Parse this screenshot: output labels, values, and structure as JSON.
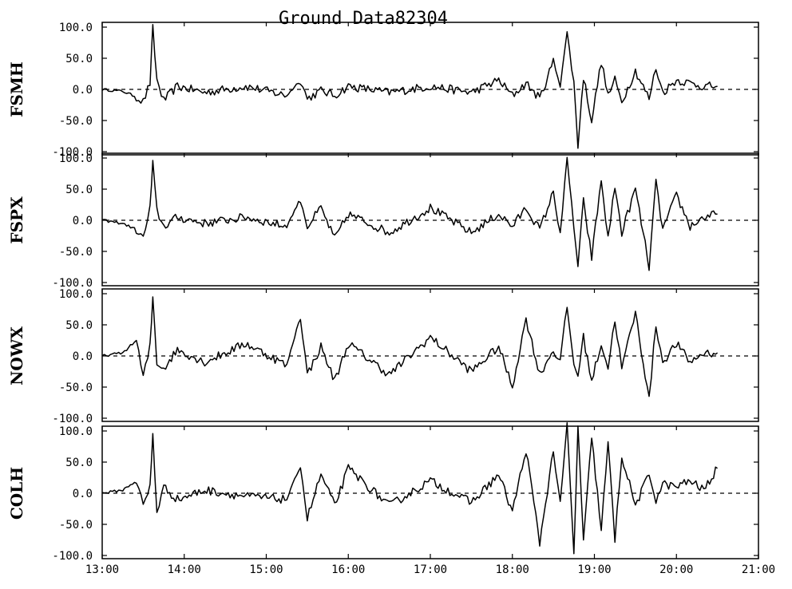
{
  "chart_data": {
    "type": "line",
    "title": "Ground Data82304",
    "x_tick_labels": [
      "13:00",
      "14:00",
      "15:00",
      "16:00",
      "17:00",
      "18:00",
      "19:00",
      "20:00",
      "21:00"
    ],
    "xlim": [
      "13:00",
      "21:00"
    ],
    "zero_line": "dashed",
    "colors": {
      "line": "#000000",
      "axes": "#000000",
      "background": "#ffffff"
    },
    "panels": [
      {
        "ylabel": "FSMH",
        "y_tick_labels": [
          "100.0",
          "50.0",
          "0.0",
          "-50.0",
          "-100.0"
        ],
        "ylim": [
          -100,
          100
        ],
        "series": [
          {
            "x": [
              "13:00",
              "13:15",
              "13:25",
              "13:30",
              "13:35",
              "13:37",
              "13:40",
              "13:45",
              "13:55",
              "14:15",
              "14:45",
              "15:15",
              "15:25",
              "15:30",
              "15:40",
              "15:50",
              "16:00",
              "16:30",
              "17:00",
              "17:30",
              "17:50",
              "18:00",
              "18:10",
              "18:20",
              "18:30",
              "18:35",
              "18:40",
              "18:45",
              "18:48",
              "18:52",
              "18:58",
              "19:05",
              "19:10",
              "19:15",
              "19:20",
              "19:30",
              "19:40",
              "19:45",
              "19:50",
              "20:00",
              "20:10",
              "20:20",
              "20:30"
            ],
            "values": [
              0,
              -3,
              -12,
              -20,
              10,
              98,
              15,
              -18,
              5,
              -5,
              5,
              -10,
              15,
              -15,
              -2,
              -10,
              5,
              -5,
              5,
              -5,
              15,
              -10,
              10,
              -15,
              45,
              10,
              90,
              10,
              -90,
              20,
              -50,
              45,
              -10,
              15,
              -20,
              30,
              -15,
              35,
              -5,
              15,
              10,
              5,
              5
            ]
          }
        ]
      },
      {
        "ylabel": "FSPX",
        "y_tick_labels": [
          "100.0",
          "50.0",
          "0.0",
          "-50.0",
          "-100.0"
        ],
        "ylim": [
          -100,
          100
        ],
        "series": [
          {
            "x": [
              "13:00",
              "13:15",
              "13:25",
              "13:30",
              "13:35",
              "13:37",
              "13:40",
              "13:45",
              "13:55",
              "14:15",
              "14:45",
              "15:15",
              "15:25",
              "15:30",
              "15:40",
              "15:50",
              "16:00",
              "16:30",
              "17:00",
              "17:30",
              "17:50",
              "18:00",
              "18:10",
              "18:20",
              "18:30",
              "18:35",
              "18:40",
              "18:45",
              "18:48",
              "18:52",
              "18:58",
              "19:05",
              "19:10",
              "19:15",
              "19:20",
              "19:30",
              "19:40",
              "19:45",
              "19:50",
              "20:00",
              "20:10",
              "20:20",
              "20:30"
            ],
            "values": [
              0,
              -5,
              -15,
              -30,
              20,
              90,
              15,
              -10,
              5,
              -5,
              5,
              -10,
              35,
              -10,
              20,
              -30,
              10,
              -20,
              20,
              -20,
              10,
              -10,
              20,
              -15,
              45,
              -20,
              95,
              -10,
              -75,
              30,
              -60,
              65,
              -30,
              55,
              -20,
              50,
              -75,
              60,
              -15,
              40,
              -10,
              5,
              10
            ]
          }
        ]
      },
      {
        "ylabel": "NOWX",
        "y_tick_labels": [
          "100.0",
          "50.0",
          "0.0",
          "-50.0",
          "-100.0"
        ],
        "ylim": [
          -100,
          100
        ],
        "series": [
          {
            "x": [
              "13:00",
              "13:15",
              "13:25",
              "13:30",
              "13:35",
              "13:37",
              "13:40",
              "13:45",
              "13:55",
              "14:15",
              "14:45",
              "15:15",
              "15:25",
              "15:30",
              "15:40",
              "15:50",
              "16:00",
              "16:30",
              "17:00",
              "17:30",
              "17:50",
              "18:00",
              "18:10",
              "18:20",
              "18:30",
              "18:35",
              "18:40",
              "18:45",
              "18:48",
              "18:52",
              "18:58",
              "19:05",
              "19:10",
              "19:15",
              "19:20",
              "19:30",
              "19:40",
              "19:45",
              "19:50",
              "20:00",
              "20:10",
              "20:20",
              "20:30"
            ],
            "values": [
              0,
              5,
              25,
              -35,
              15,
              95,
              -10,
              -20,
              10,
              -10,
              20,
              -15,
              65,
              -30,
              15,
              -40,
              20,
              -30,
              30,
              -25,
              15,
              -50,
              60,
              -30,
              10,
              -10,
              80,
              -15,
              -30,
              30,
              -40,
              20,
              -20,
              60,
              -20,
              70,
              -70,
              50,
              -10,
              20,
              -10,
              5,
              5
            ]
          }
        ]
      },
      {
        "ylabel": "COLH",
        "y_tick_labels": [
          "100.0",
          "50.0",
          "0.0",
          "-50.0",
          "-100.0"
        ],
        "ylim": [
          -100,
          100
        ],
        "series": [
          {
            "x": [
              "13:00",
              "13:15",
              "13:25",
              "13:30",
              "13:35",
              "13:37",
              "13:40",
              "13:45",
              "13:55",
              "14:15",
              "14:45",
              "15:15",
              "15:25",
              "15:30",
              "15:40",
              "15:50",
              "16:00",
              "16:30",
              "17:00",
              "17:30",
              "17:50",
              "18:00",
              "18:10",
              "18:20",
              "18:30",
              "18:35",
              "18:40",
              "18:45",
              "18:48",
              "18:52",
              "18:58",
              "19:05",
              "19:10",
              "19:15",
              "19:20",
              "19:30",
              "19:40",
              "19:45",
              "19:50",
              "20:00",
              "20:10",
              "20:20",
              "20:30"
            ],
            "values": [
              0,
              5,
              20,
              -20,
              10,
              95,
              -30,
              10,
              -10,
              5,
              -5,
              -10,
              45,
              -40,
              30,
              -20,
              40,
              -20,
              20,
              -15,
              30,
              -30,
              70,
              -80,
              70,
              -20,
              110,
              -100,
              110,
              -80,
              90,
              -60,
              80,
              -75,
              60,
              -20,
              30,
              -10,
              15,
              10,
              20,
              5,
              40
            ]
          }
        ]
      }
    ]
  }
}
